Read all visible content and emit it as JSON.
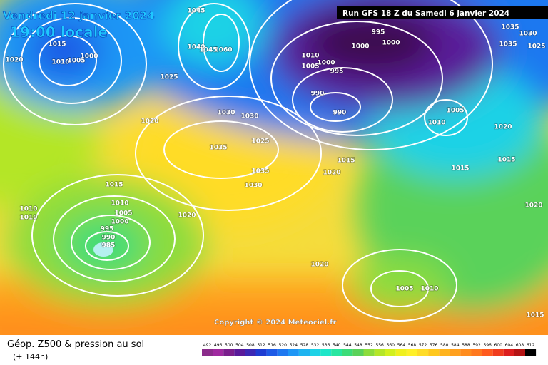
{
  "header": {
    "valid_date": "Vendredi 12 janvier 2024",
    "local_time": "19:00 locale",
    "run": "Run GFS 18 Z du Samedi 6 janvier 2024"
  },
  "copyright": "Copyright © 2024 Meteociel.fr",
  "footer": {
    "title": "Géop. Z500 & pression au sol",
    "lead_time": "(+ 144h)"
  },
  "isobar_labels": [
    1045,
    1035,
    1030,
    1035,
    1025,
    995,
    1000,
    1000,
    1010,
    1005,
    1000,
    995,
    990,
    990,
    1005,
    1010,
    1020,
    1015,
    1015,
    1020,
    1015,
    1010,
    1005,
    1000,
    1020,
    1060,
    1040,
    1045,
    1025,
    1030,
    1030,
    1020,
    1035,
    1025,
    1035,
    1020,
    1015,
    1030,
    1015,
    1010,
    1005,
    1000,
    995,
    990,
    985,
    1010,
    1010,
    1020,
    1020,
    1005,
    1010,
    1015
  ],
  "scale": {
    "values": [
      492,
      496,
      500,
      504,
      508,
      512,
      516,
      520,
      524,
      528,
      532,
      536,
      540,
      544,
      548,
      552,
      556,
      560,
      564,
      568,
      572,
      576,
      580,
      584,
      588,
      592,
      596,
      600,
      604,
      608,
      612
    ],
    "colors": [
      "#8b2c8b",
      "#a02aa0",
      "#7a1e8c",
      "#5a1a9a",
      "#3c28b4",
      "#1e3cd2",
      "#1e5ae6",
      "#1e78f0",
      "#1e96f5",
      "#1eb4f0",
      "#1ed2e6",
      "#1ee6c8",
      "#28e6a0",
      "#3cdc78",
      "#5ad25a",
      "#8cdc3c",
      "#b4e628",
      "#d2f01e",
      "#f0f01e",
      "#fff028",
      "#ffdc28",
      "#ffc81e",
      "#ffb41e",
      "#ffa01e",
      "#ff8c1e",
      "#ff781e",
      "#ff5a1e",
      "#f03c1e",
      "#dc1e1e",
      "#b41414",
      "#000000"
    ]
  }
}
